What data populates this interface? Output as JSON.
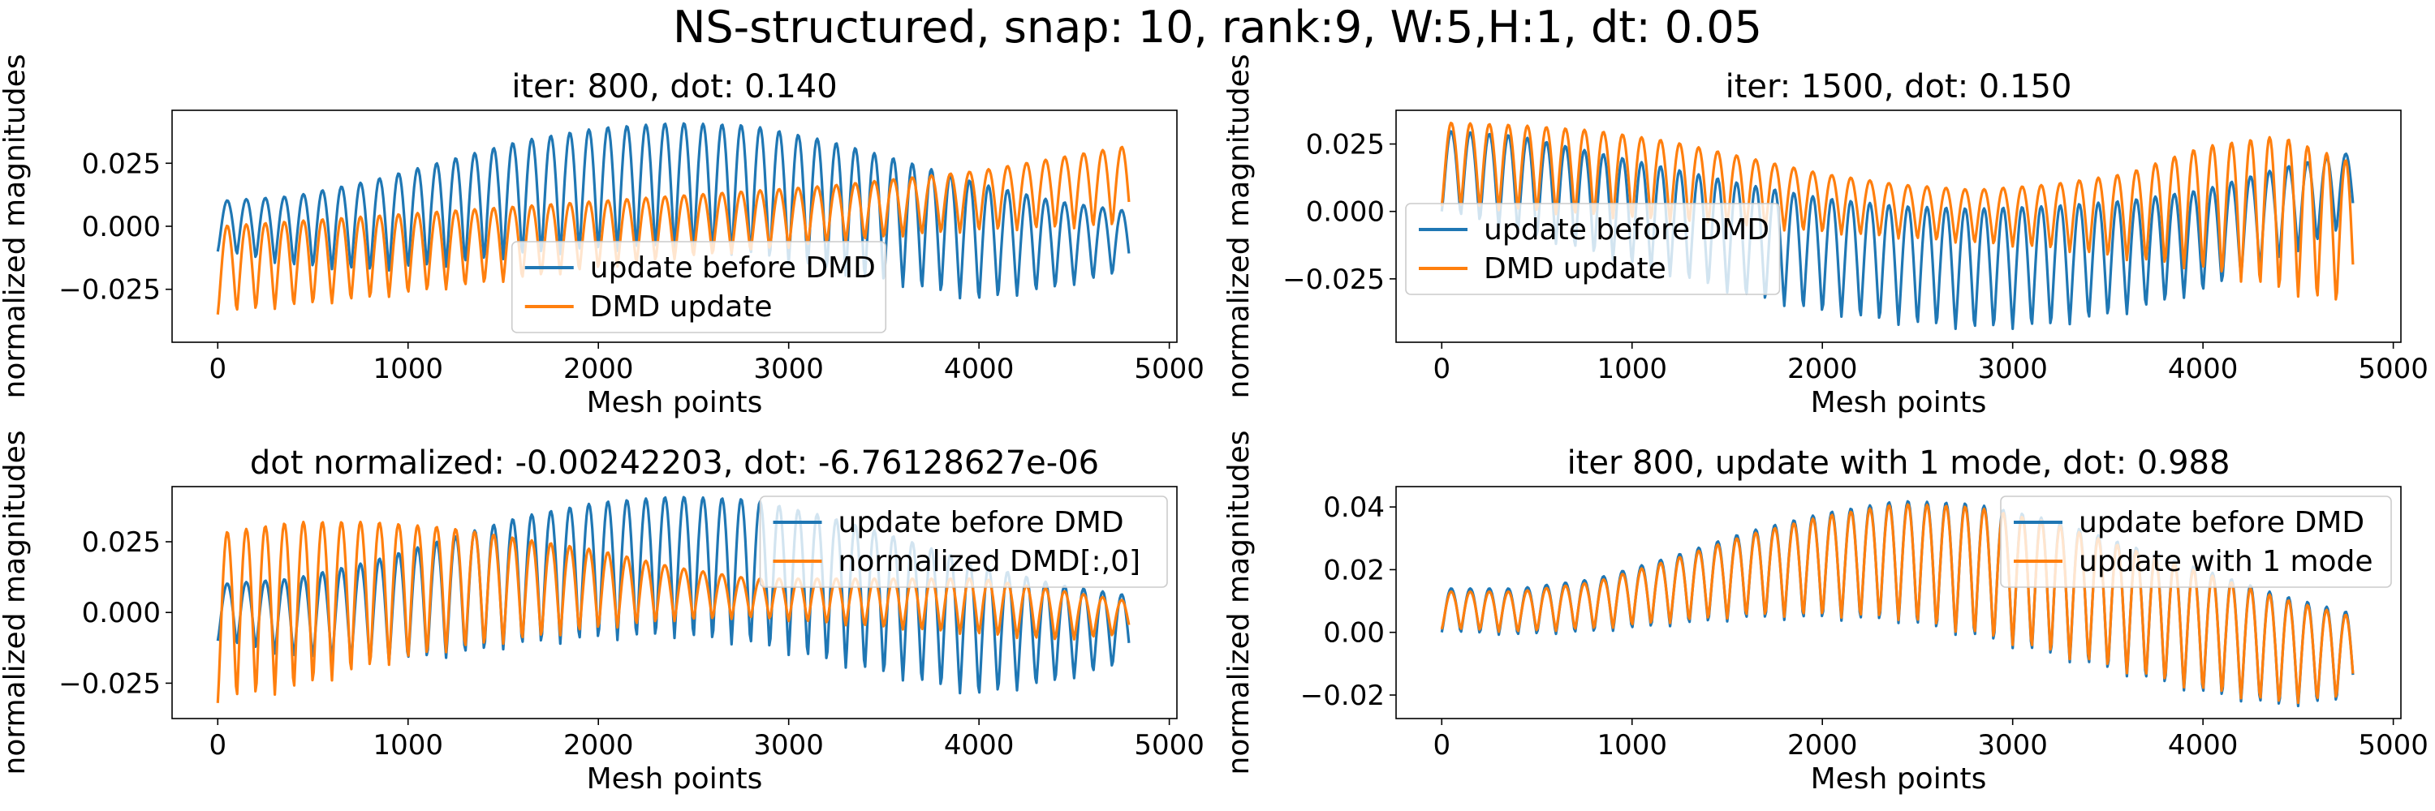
{
  "figure_title": "NS-structured, snap: 10, rank:9, W:5,H:1, dt: 0.05",
  "colors": {
    "before": "#1f77b4",
    "after": "#ff7f0e"
  },
  "chart_data": [
    {
      "type": "line",
      "title": "iter: 800, dot: 0.140",
      "xlabel": "Mesh points",
      "ylabel": "normalized magnitudes",
      "xlim": [
        -240,
        5040
      ],
      "ylim": [
        -0.046,
        0.046
      ],
      "xticks": [
        0,
        1000,
        2000,
        3000,
        4000,
        5000
      ],
      "xtick_labels": [
        "0",
        "1000",
        "2000",
        "3000",
        "4000",
        "5000"
      ],
      "yticks": [
        -0.025,
        0.0,
        0.025
      ],
      "ytick_labels": [
        "−0.025",
        "0.000",
        "0.025"
      ],
      "legend": {
        "placement": "lower center",
        "entries": [
          "update before DMD",
          "DMD update"
        ]
      },
      "series": [
        {
          "name": "update before DMD",
          "color": "#1f77b4",
          "x": [
            0,
            400,
            800,
            1200,
            1600,
            2000,
            2400,
            2800,
            3200,
            3600,
            4000,
            4400,
            4790
          ],
          "upper": [
            0.01,
            0.012,
            0.018,
            0.026,
            0.034,
            0.039,
            0.041,
            0.04,
            0.034,
            0.026,
            0.017,
            0.01,
            0.006
          ],
          "lower": [
            -0.01,
            -0.016,
            -0.018,
            -0.016,
            -0.012,
            -0.01,
            -0.009,
            -0.012,
            -0.018,
            -0.024,
            -0.03,
            -0.025,
            -0.018
          ]
        },
        {
          "name": "DMD update",
          "color": "#ff7f0e",
          "x": [
            0,
            400,
            800,
            1200,
            1600,
            2000,
            2400,
            2800,
            3200,
            3600,
            4000,
            4400,
            4790
          ],
          "upper": [
            0.0,
            0.002,
            0.004,
            0.006,
            0.008,
            0.01,
            0.012,
            0.014,
            0.016,
            0.019,
            0.022,
            0.027,
            0.032
          ],
          "lower": [
            -0.035,
            -0.032,
            -0.029,
            -0.025,
            -0.021,
            -0.017,
            -0.013,
            -0.01,
            -0.007,
            -0.004,
            -0.002,
            -0.001,
            0.0
          ]
        }
      ]
    },
    {
      "type": "line",
      "title": "iter: 1500, dot: 0.150",
      "xlabel": "Mesh points",
      "ylabel": "normalized magnitudes",
      "xlim": [
        -240,
        5040
      ],
      "ylim": [
        -0.0485,
        0.0375
      ],
      "xticks": [
        0,
        1000,
        2000,
        3000,
        4000,
        5000
      ],
      "xtick_labels": [
        "0",
        "1000",
        "2000",
        "3000",
        "4000",
        "5000"
      ],
      "yticks": [
        -0.025,
        0.0,
        0.025
      ],
      "ytick_labels": [
        "−0.025",
        "0.000",
        "0.025"
      ],
      "legend": {
        "placement": "center left",
        "entries": [
          "update before DMD",
          "DMD update"
        ]
      },
      "series": [
        {
          "name": "update before DMD",
          "color": "#1f77b4",
          "x": [
            0,
            400,
            800,
            1200,
            1600,
            2000,
            2400,
            2800,
            3200,
            3600,
            4000,
            4400,
            4790
          ],
          "upper": [
            0.03,
            0.028,
            0.022,
            0.016,
            0.01,
            0.005,
            0.002,
            0.001,
            0.002,
            0.004,
            0.008,
            0.016,
            0.022
          ],
          "lower": [
            0.0,
            -0.008,
            -0.016,
            -0.024,
            -0.032,
            -0.038,
            -0.042,
            -0.044,
            -0.043,
            -0.038,
            -0.03,
            -0.018,
            -0.005
          ]
        },
        {
          "name": "DMD update",
          "color": "#ff7f0e",
          "x": [
            0,
            400,
            800,
            1200,
            1600,
            2000,
            2400,
            2800,
            3200,
            3600,
            4000,
            4400,
            4790
          ],
          "upper": [
            0.033,
            0.032,
            0.03,
            0.026,
            0.02,
            0.014,
            0.01,
            0.008,
            0.01,
            0.014,
            0.024,
            0.028,
            0.018
          ],
          "lower": [
            0.002,
            0.0,
            -0.002,
            -0.004,
            -0.006,
            -0.008,
            -0.01,
            -0.012,
            -0.014,
            -0.018,
            -0.022,
            -0.03,
            -0.036
          ]
        }
      ]
    },
    {
      "type": "line",
      "title": "dot normalized: -0.00242203, dot: -6.76128627e-06",
      "xlabel": "Mesh points",
      "ylabel": "normalized magnitudes",
      "xlim": [
        -240,
        5040
      ],
      "ylim": [
        -0.0375,
        0.0445
      ],
      "xticks": [
        0,
        1000,
        2000,
        3000,
        4000,
        5000
      ],
      "xtick_labels": [
        "0",
        "1000",
        "2000",
        "3000",
        "4000",
        "5000"
      ],
      "yticks": [
        -0.025,
        0.0,
        0.025
      ],
      "ytick_labels": [
        "−0.025",
        "0.000",
        "0.025"
      ],
      "legend": {
        "placement": "upper right",
        "entries": [
          "update before DMD",
          "normalized DMD[:,0]"
        ]
      },
      "series": [
        {
          "name": "update before DMD",
          "color": "#1f77b4",
          "x": [
            0,
            400,
            800,
            1200,
            1600,
            2000,
            2400,
            2800,
            3200,
            3600,
            4000,
            4400,
            4790
          ],
          "upper": [
            0.01,
            0.012,
            0.018,
            0.026,
            0.034,
            0.039,
            0.041,
            0.04,
            0.034,
            0.026,
            0.017,
            0.01,
            0.006
          ],
          "lower": [
            -0.01,
            -0.016,
            -0.018,
            -0.016,
            -0.012,
            -0.01,
            -0.009,
            -0.012,
            -0.018,
            -0.024,
            -0.03,
            -0.025,
            -0.018
          ]
        },
        {
          "name": "normalized DMD[:,0]",
          "color": "#ff7f0e",
          "x": [
            0,
            400,
            800,
            1200,
            1600,
            2000,
            2400,
            2800,
            3200,
            3600,
            4000,
            4400,
            4790
          ],
          "upper": [
            0.028,
            0.032,
            0.032,
            0.03,
            0.026,
            0.022,
            0.016,
            0.012,
            0.012,
            0.012,
            0.012,
            0.008,
            0.004
          ],
          "lower": [
            -0.032,
            -0.028,
            -0.02,
            -0.014,
            -0.01,
            -0.006,
            -0.003,
            -0.002,
            -0.004,
            -0.006,
            -0.008,
            -0.01,
            -0.008
          ]
        }
      ]
    },
    {
      "type": "line",
      "title": "iter 800, update with 1 mode, dot: 0.988",
      "xlabel": "Mesh points",
      "ylabel": "normalized magnitudes",
      "xlim": [
        -240,
        5040
      ],
      "ylim": [
        -0.0275,
        0.0465
      ],
      "xticks": [
        0,
        1000,
        2000,
        3000,
        4000,
        5000
      ],
      "xtick_labels": [
        "0",
        "1000",
        "2000",
        "3000",
        "4000",
        "5000"
      ],
      "yticks": [
        -0.02,
        0.0,
        0.02,
        0.04
      ],
      "ytick_labels": [
        "−0.02",
        "0.00",
        "0.02",
        "0.04"
      ],
      "legend": {
        "placement": "upper right",
        "entries": [
          "update before DMD",
          "update with 1 mode"
        ]
      },
      "series": [
        {
          "name": "update before DMD",
          "color": "#1f77b4",
          "x": [
            0,
            400,
            800,
            1200,
            1600,
            2000,
            2400,
            2800,
            3200,
            3600,
            4000,
            4400,
            4790
          ],
          "upper": [
            0.014,
            0.014,
            0.017,
            0.024,
            0.032,
            0.038,
            0.042,
            0.041,
            0.036,
            0.028,
            0.02,
            0.012,
            0.006
          ],
          "lower": [
            0.0,
            -0.001,
            0.0,
            0.002,
            0.004,
            0.004,
            0.003,
            -0.002,
            -0.008,
            -0.014,
            -0.02,
            -0.024,
            -0.022
          ]
        },
        {
          "name": "update with 1 mode",
          "color": "#ff7f0e",
          "x": [
            0,
            400,
            800,
            1200,
            1600,
            2000,
            2400,
            2800,
            3200,
            3600,
            4000,
            4400,
            4790
          ],
          "upper": [
            0.013,
            0.013,
            0.016,
            0.023,
            0.031,
            0.037,
            0.041,
            0.04,
            0.035,
            0.027,
            0.019,
            0.011,
            0.005
          ],
          "lower": [
            0.001,
            0.0,
            0.001,
            0.003,
            0.005,
            0.005,
            0.004,
            -0.001,
            -0.007,
            -0.013,
            -0.019,
            -0.023,
            -0.021
          ]
        }
      ]
    }
  ]
}
